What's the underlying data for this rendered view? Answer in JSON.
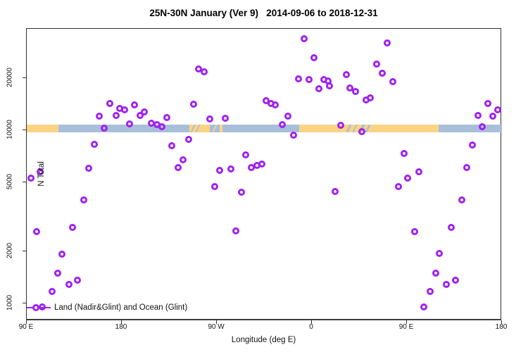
{
  "colors": {
    "point": "#A020F0",
    "land": "#FAD484",
    "ocean": "#A9BFD9",
    "axis": "#2e2e2e"
  },
  "chart_data": {
    "type": "scatter",
    "title": "25N-30N January (Ver 9)   2014-09-06 to 2018-12-31",
    "xlabel": "Longitude (deg E)",
    "ylabel": "N Total",
    "legend": {
      "label": "Land (Nadir&Glint) and Ocean (Glint)",
      "marker": "line-with-open-circle",
      "position": "bottom-left"
    },
    "x_axis": {
      "min": 90,
      "max": 540,
      "note": "longitude wraps eastward: 90E to 180, 90W, 0, 90E, 180",
      "ticks": [
        {
          "lon": 90,
          "label": "90 E"
        },
        {
          "lon": 180,
          "label": "180"
        },
        {
          "lon": 270,
          "label": "90 W"
        },
        {
          "lon": 360,
          "label": "0"
        },
        {
          "lon": 450,
          "label": "90 E"
        },
        {
          "lon": 540,
          "label": "180"
        }
      ]
    },
    "y_axis": {
      "scale": "log",
      "min": 900,
      "max": 40000,
      "ticks": [
        {
          "n": 1000,
          "label": "1000"
        },
        {
          "n": 2000,
          "label": "2000"
        },
        {
          "n": 5000,
          "label": "5000"
        },
        {
          "n": 10000,
          "label": "10000"
        },
        {
          "n": 20000,
          "label": "20000"
        }
      ]
    },
    "surface_band": {
      "comment": "land/ocean strip drawn near N=10500",
      "segments": [
        {
          "kind": "land",
          "from": 90,
          "to": 120
        },
        {
          "kind": "ocean",
          "from": 120,
          "to": 244
        },
        {
          "kind": "land",
          "from": 244,
          "to": 263.5
        },
        {
          "kind": "ocean",
          "from": 263.5,
          "to": 272.5
        },
        {
          "kind": "land",
          "from": 272.5,
          "to": 275.5
        },
        {
          "kind": "ocean",
          "from": 275.5,
          "to": 348
        },
        {
          "kind": "land",
          "from": 348,
          "to": 480
        },
        {
          "kind": "ocean",
          "from": 480,
          "to": 540
        }
      ],
      "slashes": [
        {
          "kind": "ocean",
          "lon": 246.5,
          "w": 2
        },
        {
          "kind": "ocean",
          "lon": 251,
          "w": 2
        },
        {
          "kind": "land",
          "lon": 267,
          "w": 2
        },
        {
          "kind": "ocean",
          "lon": 394,
          "w": 3
        },
        {
          "kind": "ocean",
          "lon": 400,
          "w": 2
        },
        {
          "kind": "ocean",
          "lon": 406,
          "w": 4
        },
        {
          "kind": "ocean",
          "lon": 412,
          "w": 3
        }
      ]
    },
    "series": [
      {
        "name": "Land (Nadir&Glint) and Ocean (Glint)",
        "marker": "open-circle",
        "color": "#A020F0",
        "points": [
          [
            94,
            5290
          ],
          [
            102.5,
            5750
          ],
          [
            148.5,
            6030
          ],
          [
            144,
            3960
          ],
          [
            99.5,
            2600
          ],
          [
            133.5,
            2750
          ],
          [
            123.5,
            1930
          ],
          [
            119.5,
            1500
          ],
          [
            130,
            1290
          ],
          [
            138,
            1360
          ],
          [
            114,
            1170
          ],
          [
            104.5,
            950
          ],
          [
            158.5,
            12100
          ],
          [
            168.5,
            14300
          ],
          [
            174.5,
            12200
          ],
          [
            178,
            13400
          ],
          [
            182.5,
            13100
          ],
          [
            192,
            14000
          ],
          [
            197.5,
            12200
          ],
          [
            201.5,
            12800
          ],
          [
            187.5,
            10900
          ],
          [
            163.5,
            10300
          ],
          [
            154,
            8290
          ],
          [
            252.5,
            22600
          ],
          [
            258,
            21800
          ],
          [
            248,
            14100
          ],
          [
            222.5,
            11800
          ],
          [
            208,
            11000
          ],
          [
            213.5,
            10800
          ],
          [
            218,
            10500
          ],
          [
            263.5,
            11600
          ],
          [
            278,
            11700
          ],
          [
            316.5,
            14800
          ],
          [
            321.5,
            14300
          ],
          [
            243.5,
            8860
          ],
          [
            227.5,
            8140
          ],
          [
            238,
            6750
          ],
          [
            233.5,
            6090
          ],
          [
            272.5,
            5860
          ],
          [
            283.5,
            5980
          ],
          [
            297.5,
            7210
          ],
          [
            302.5,
            6090
          ],
          [
            308,
            6260
          ],
          [
            312.5,
            6380
          ],
          [
            268,
            4730
          ],
          [
            293.5,
            4390
          ],
          [
            288,
            2620
          ],
          [
            352.5,
            33800
          ],
          [
            431.5,
            31900
          ],
          [
            362,
            26200
          ],
          [
            421.5,
            24100
          ],
          [
            426.5,
            21300
          ],
          [
            436.5,
            19100
          ],
          [
            392.5,
            20900
          ],
          [
            347.5,
            19800
          ],
          [
            357.5,
            19600
          ],
          [
            371.5,
            19600
          ],
          [
            375,
            19300
          ],
          [
            366.5,
            17400
          ],
          [
            376.5,
            18000
          ],
          [
            396,
            17500
          ],
          [
            401.5,
            16700
          ],
          [
            411.5,
            15000
          ],
          [
            415.5,
            15400
          ],
          [
            325.5,
            14000
          ],
          [
            337.5,
            12100
          ],
          [
            332,
            10800
          ],
          [
            342.5,
            9370
          ],
          [
            387.5,
            10700
          ],
          [
            407.5,
            9810
          ],
          [
            382,
            4430
          ],
          [
            442,
            4730
          ],
          [
            526.5,
            14300
          ],
          [
            536,
            13100
          ],
          [
            517.5,
            12200
          ],
          [
            531.5,
            12100
          ],
          [
            521.5,
            10500
          ],
          [
            512,
            8210
          ],
          [
            447.5,
            7340
          ],
          [
            506.5,
            6090
          ],
          [
            461.5,
            5750
          ],
          [
            450.5,
            5290
          ],
          [
            502,
            3960
          ],
          [
            457.5,
            2600
          ],
          [
            492,
            2750
          ],
          [
            480.5,
            1940
          ],
          [
            477.5,
            1500
          ],
          [
            487.5,
            1290
          ],
          [
            496,
            1360
          ],
          [
            472,
            1170
          ],
          [
            466,
            950
          ]
        ]
      }
    ]
  }
}
